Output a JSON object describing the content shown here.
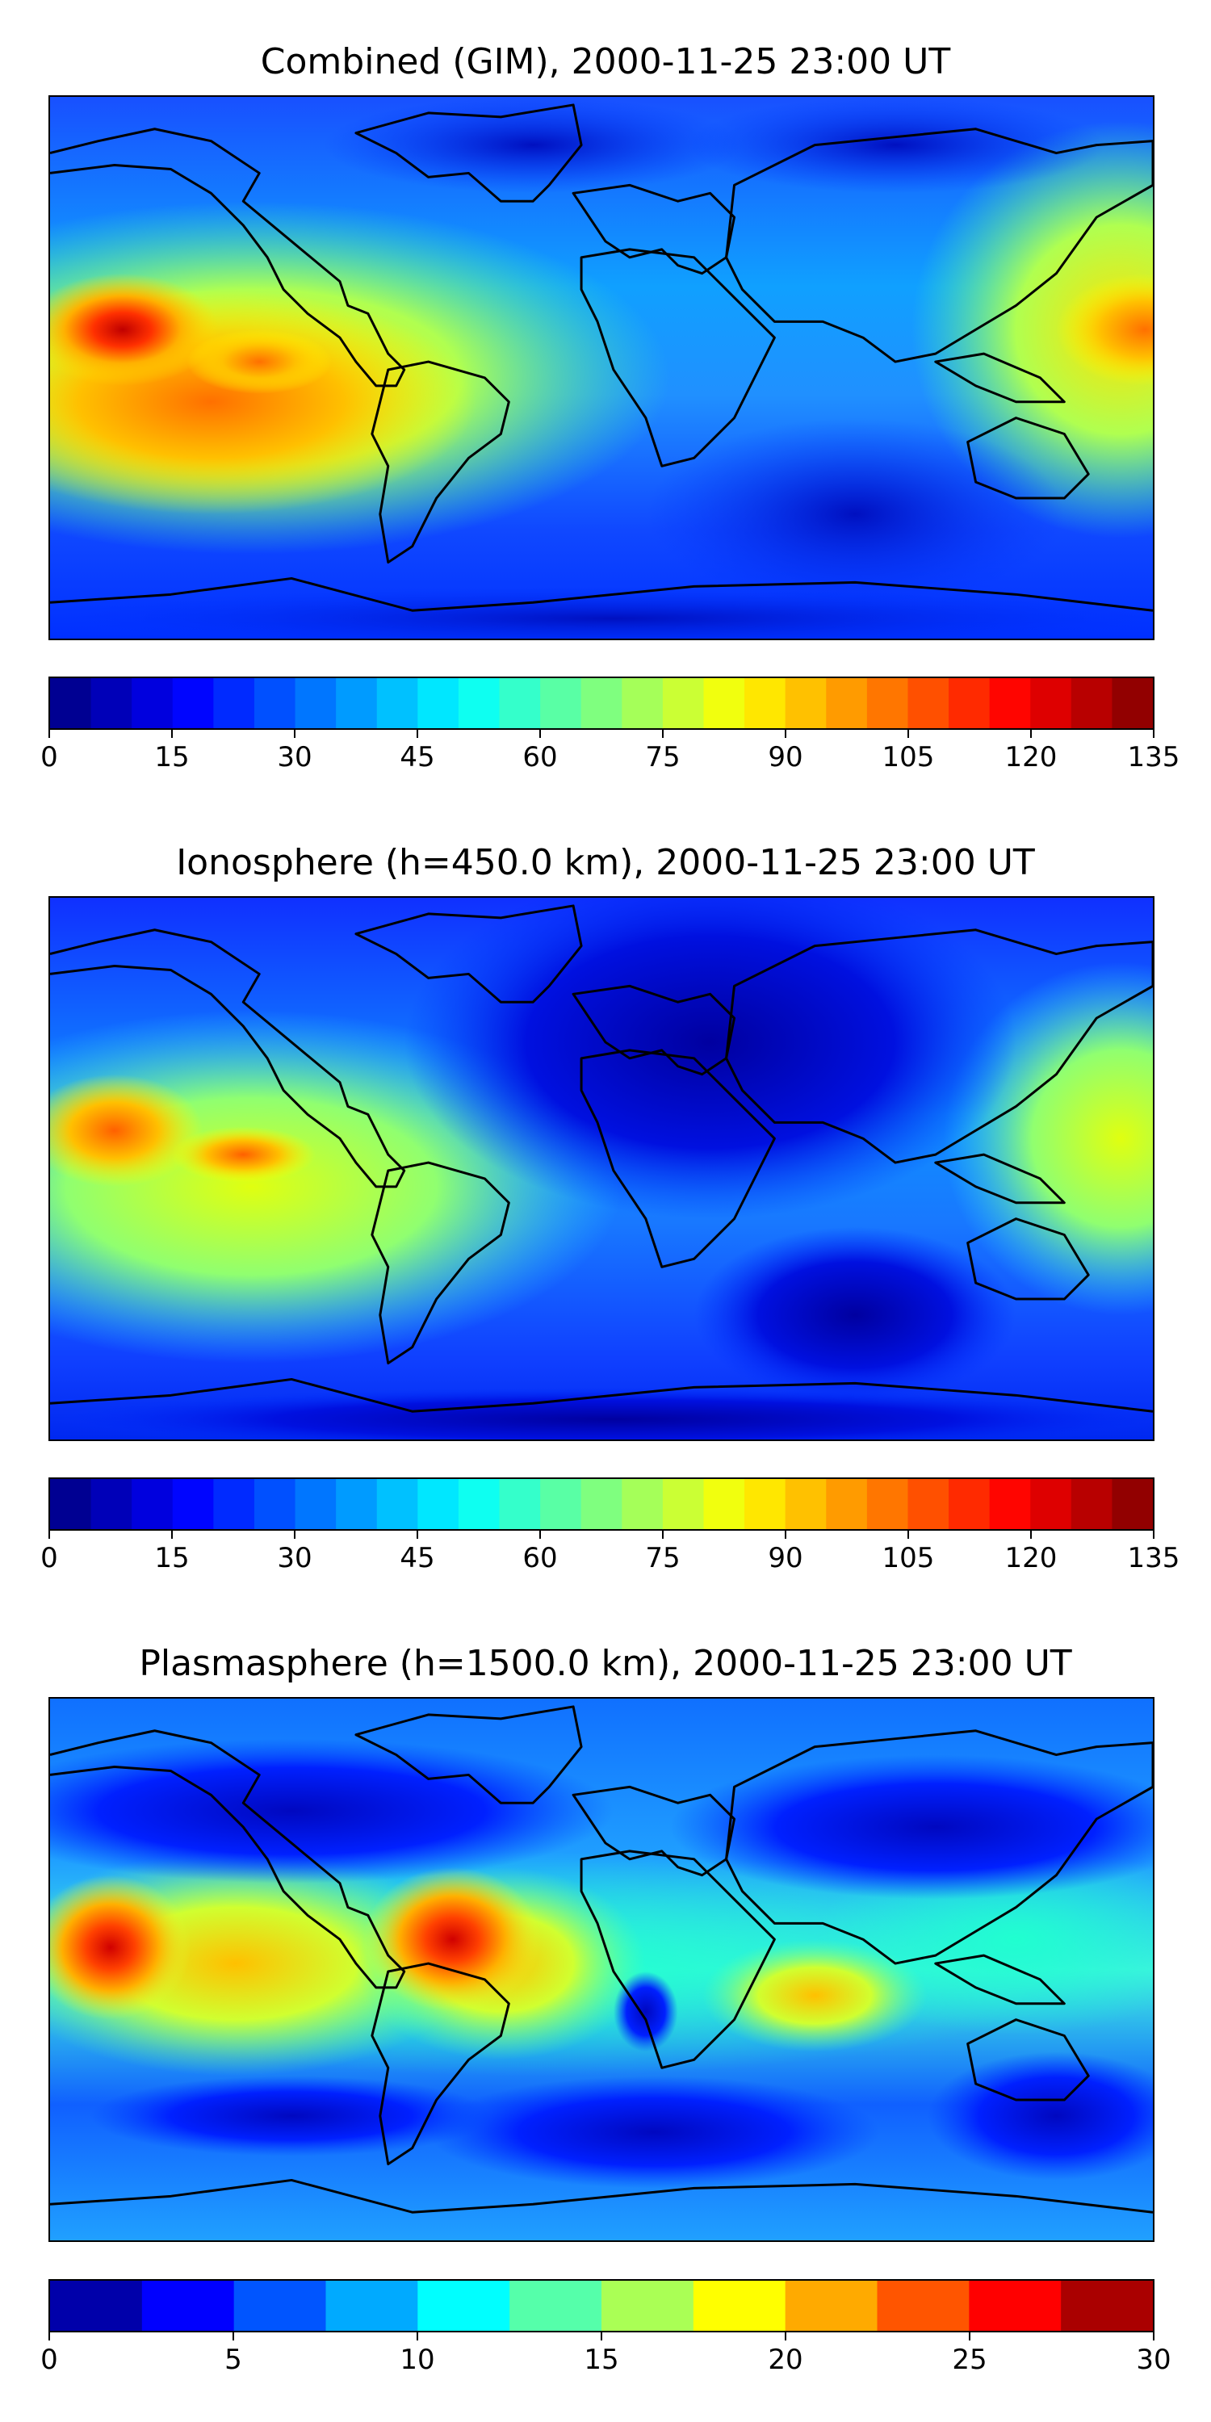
{
  "panels": [
    {
      "id": "combined",
      "title": "Combined (GIM), 2000-11-25 23:00 UT",
      "colorbar_min": 0,
      "colorbar_max": 135,
      "colorbar_levels": 27,
      "colorbar_tick_labels": [
        "0",
        "15",
        "30",
        "45",
        "60",
        "75",
        "90",
        "105",
        "120",
        "135"
      ],
      "colormap": "jet"
    },
    {
      "id": "ionosphere",
      "title": "Ionosphere  (h=450.0 km), 2000-11-25 23:00 UT",
      "colorbar_min": 0,
      "colorbar_max": 135,
      "colorbar_levels": 27,
      "colorbar_tick_labels": [
        "0",
        "15",
        "30",
        "45",
        "60",
        "75",
        "90",
        "105",
        "120",
        "135"
      ],
      "colormap": "jet"
    },
    {
      "id": "plasmasphere",
      "title": "Plasmasphere (h=1500.0 km), 2000-11-25 23:00 UT",
      "colorbar_min": 0,
      "colorbar_max": 30,
      "colorbar_levels": 12,
      "colorbar_tick_labels": [
        "0",
        "5",
        "10",
        "15",
        "20",
        "25",
        "30"
      ],
      "colormap": "jet"
    }
  ],
  "colors": {
    "jet": [
      "#00007f",
      "#0000ff",
      "#007fff",
      "#00ffff",
      "#7fff7f",
      "#ffff00",
      "#ff7f00",
      "#ff0000",
      "#7f0000"
    ],
    "coastline": "#000000"
  }
}
